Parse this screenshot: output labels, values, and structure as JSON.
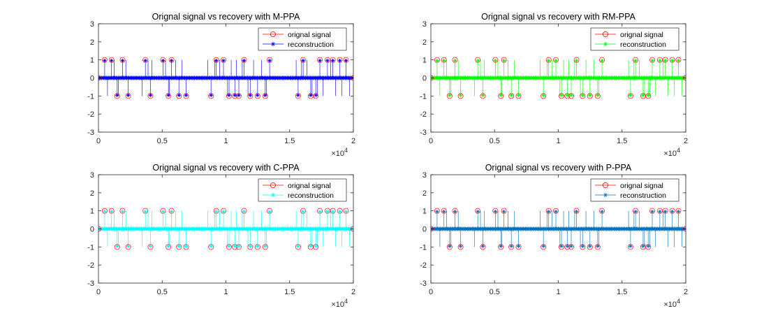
{
  "chart_data": [
    {
      "type": "scatter",
      "title": "Orignal signal vs recovery with M-PPA",
      "xlabel": "",
      "ylabel": "",
      "xlim": [
        0,
        20000
      ],
      "ylim": [
        -3,
        3
      ],
      "x_ticks": [
        "0",
        "0.5",
        "1",
        "1.5",
        "2"
      ],
      "y_ticks": [
        "3",
        "2",
        "1",
        "0",
        "-1",
        "-2",
        "-3"
      ],
      "x_exponent_label": "×10",
      "x_exponent": "4",
      "grid": false,
      "legend_position": "top-right",
      "series": [
        {
          "name": "orignal signal",
          "color": "#ff0000",
          "marker": "circle",
          "values": [
            -1,
            0,
            1
          ]
        },
        {
          "name": "reconstruction",
          "color": "#0000ff",
          "marker": "asterisk",
          "values": [
            -1,
            0,
            1
          ]
        }
      ],
      "nonzero_segments": [
        [
          400,
          2450
        ],
        [
          3100,
          4300
        ],
        [
          4900,
          7000
        ],
        [
          8300,
          13500
        ],
        [
          15200,
          19700
        ]
      ]
    },
    {
      "type": "scatter",
      "title": "Orignal signal vs recovery with RM-PPA",
      "xlabel": "",
      "ylabel": "",
      "xlim": [
        0,
        20000
      ],
      "ylim": [
        -3,
        3
      ],
      "x_ticks": [
        "0",
        "0.5",
        "1",
        "1.5",
        "2"
      ],
      "y_ticks": [
        "3",
        "2",
        "1",
        "0",
        "-1",
        "-2",
        "-3"
      ],
      "x_exponent_label": "×10",
      "x_exponent": "4",
      "grid": false,
      "legend_position": "top-right",
      "series": [
        {
          "name": "orignal signal",
          "color": "#ff0000",
          "marker": "circle",
          "values": [
            -1,
            0,
            1
          ]
        },
        {
          "name": "reconstruction",
          "color": "#00ff00",
          "marker": "asterisk",
          "values": [
            -1,
            0,
            1
          ]
        }
      ],
      "nonzero_segments": [
        [
          400,
          2450
        ],
        [
          3100,
          4300
        ],
        [
          4900,
          7000
        ],
        [
          8300,
          13500
        ],
        [
          15200,
          19700
        ]
      ]
    },
    {
      "type": "scatter",
      "title": "Orignal signal vs recovery with C-PPA",
      "xlabel": "",
      "ylabel": "",
      "xlim": [
        0,
        20000
      ],
      "ylim": [
        -3,
        3
      ],
      "x_ticks": [
        "0",
        "0.5",
        "1",
        "1.5",
        "2"
      ],
      "y_ticks": [
        "3",
        "2",
        "1",
        "0",
        "-1",
        "-2",
        "-3"
      ],
      "x_exponent_label": "×10",
      "x_exponent": "4",
      "grid": false,
      "legend_position": "top-right",
      "series": [
        {
          "name": "orignal signal",
          "color": "#ff0000",
          "marker": "circle",
          "values": [
            -1,
            0,
            1
          ]
        },
        {
          "name": "reconstruction",
          "color": "#00ffff",
          "marker": "asterisk",
          "values": [
            -1,
            0,
            1
          ]
        }
      ],
      "nonzero_segments": [
        [
          400,
          2450
        ],
        [
          3100,
          4300
        ],
        [
          4900,
          7000
        ],
        [
          8300,
          13500
        ],
        [
          15200,
          19700
        ]
      ]
    },
    {
      "type": "scatter",
      "title": "Orignal signal vs recovery with P-PPA",
      "xlabel": "",
      "ylabel": "",
      "xlim": [
        0,
        20000
      ],
      "ylim": [
        -3,
        3
      ],
      "x_ticks": [
        "0",
        "0.5",
        "1",
        "1.5",
        "2"
      ],
      "y_ticks": [
        "3",
        "2",
        "1",
        "0",
        "-1",
        "-2",
        "-3"
      ],
      "x_exponent_label": "×10",
      "x_exponent": "4",
      "grid": false,
      "legend_position": "top-right",
      "series": [
        {
          "name": "orignal signal",
          "color": "#ff0000",
          "marker": "circle",
          "values": [
            -1,
            0,
            1
          ]
        },
        {
          "name": "reconstruction",
          "color": "#0072bd",
          "marker": "asterisk",
          "values": [
            -1,
            0,
            1
          ]
        }
      ],
      "nonzero_segments": [
        [
          400,
          2450
        ],
        [
          3100,
          4300
        ],
        [
          4900,
          7000
        ],
        [
          8300,
          13500
        ],
        [
          15200,
          19700
        ]
      ]
    }
  ]
}
